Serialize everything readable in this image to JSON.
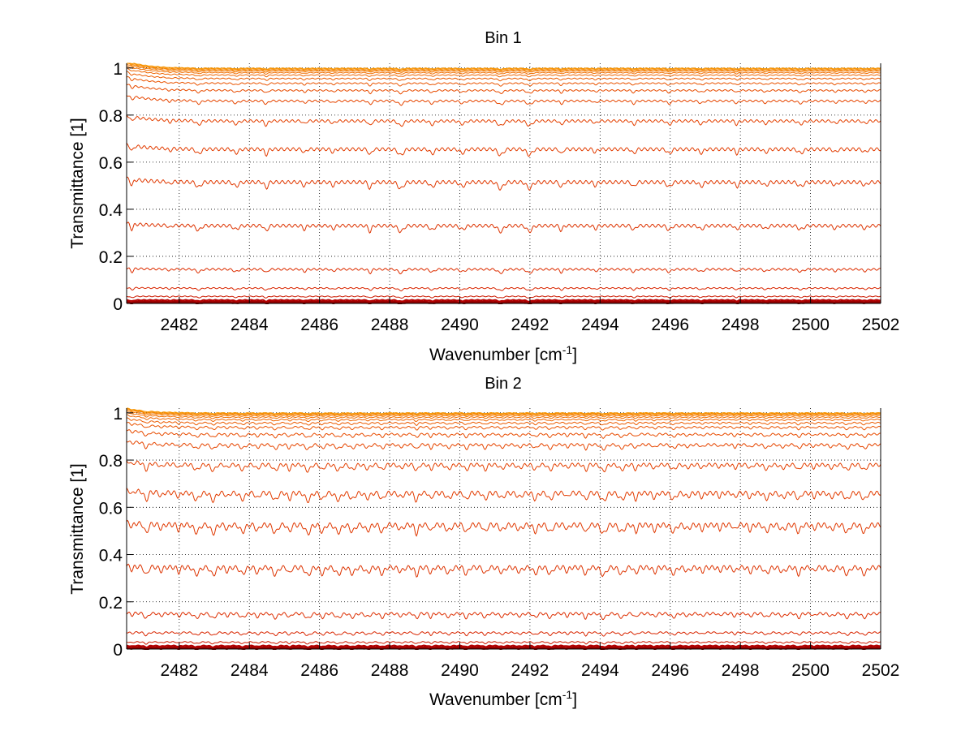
{
  "figure": {
    "background": "#ffffff",
    "axis_color": "#000000",
    "grid_color": "#000000"
  },
  "chart_data": [
    {
      "type": "line",
      "title": "Bin 1",
      "xlabel": "Wavenumber [cm",
      "xlabel_sup": "-1",
      "xlabel_tail": "]",
      "ylabel": "Transmittance [1]",
      "xlim": [
        2480.5,
        2502
      ],
      "ylim": [
        0,
        1.02
      ],
      "xticks": [
        2482,
        2484,
        2486,
        2488,
        2490,
        2492,
        2494,
        2496,
        2498,
        2500,
        2502
      ],
      "xtick_labels": [
        "2482",
        "2484",
        "2486",
        "2488",
        "2490",
        "2492",
        "2494",
        "2496",
        "2498",
        "2500",
        "2502"
      ],
      "yticks": [
        0,
        0.2,
        0.4,
        0.6,
        0.8,
        1
      ],
      "ytick_labels": [
        "0",
        "0.2",
        "0.4",
        "0.6",
        "0.8",
        "1"
      ],
      "grid": true,
      "grid_style": "dotted",
      "line_spacing": 0.95,
      "dip_scale": 0.05,
      "start_bump": 0.03,
      "series": [
        {
          "base": 0.003,
          "color": "#8b0000"
        },
        {
          "base": 0.008,
          "color": "#9c0000"
        },
        {
          "base": 0.014,
          "color": "#b40000"
        },
        {
          "base": 0.03,
          "color": "#cc1a00"
        },
        {
          "base": 0.065,
          "color": "#d92600"
        },
        {
          "base": 0.145,
          "color": "#dd2e00"
        },
        {
          "base": 0.33,
          "color": "#dd3300"
        },
        {
          "base": 0.515,
          "color": "#e03800"
        },
        {
          "base": 0.655,
          "color": "#e23c00"
        },
        {
          "base": 0.775,
          "color": "#e44000"
        },
        {
          "base": 0.86,
          "color": "#e64600"
        },
        {
          "base": 0.905,
          "color": "#e84c00"
        },
        {
          "base": 0.935,
          "color": "#ea5400"
        },
        {
          "base": 0.955,
          "color": "#ec5c00"
        },
        {
          "base": 0.97,
          "color": "#ee6500"
        },
        {
          "base": 0.98,
          "color": "#f06e00"
        },
        {
          "base": 0.987,
          "color": "#f27800"
        },
        {
          "base": 0.992,
          "color": "#f48200"
        },
        {
          "base": 0.996,
          "color": "#f68c00"
        },
        {
          "base": 0.999,
          "color": "#f89600"
        }
      ]
    },
    {
      "type": "line",
      "title": "Bin 2",
      "xlabel": "Wavenumber [cm",
      "xlabel_sup": "-1",
      "xlabel_tail": "]",
      "ylabel": "Transmittance [1]",
      "xlim": [
        2480.5,
        2502
      ],
      "ylim": [
        0,
        1.02
      ],
      "xticks": [
        2482,
        2484,
        2486,
        2488,
        2490,
        2492,
        2494,
        2496,
        2498,
        2500,
        2502
      ],
      "xtick_labels": [
        "2482",
        "2484",
        "2486",
        "2488",
        "2490",
        "2492",
        "2494",
        "2496",
        "2498",
        "2500",
        "2502"
      ],
      "yticks": [
        0,
        0.2,
        0.4,
        0.6,
        0.8,
        1
      ],
      "ytick_labels": [
        "0",
        "0.2",
        "0.4",
        "0.6",
        "0.8",
        "1"
      ],
      "grid": true,
      "grid_style": "dotted",
      "line_spacing": 0.47,
      "dip_scale": 0.07,
      "start_bump": 0.02,
      "series": [
        {
          "base": 0.003,
          "color": "#8b0000"
        },
        {
          "base": 0.008,
          "color": "#9c0000"
        },
        {
          "base": 0.014,
          "color": "#b40000"
        },
        {
          "base": 0.03,
          "color": "#cc1a00"
        },
        {
          "base": 0.07,
          "color": "#d92600"
        },
        {
          "base": 0.15,
          "color": "#dd2e00"
        },
        {
          "base": 0.345,
          "color": "#dd3300"
        },
        {
          "base": 0.525,
          "color": "#e03800"
        },
        {
          "base": 0.66,
          "color": "#e23c00"
        },
        {
          "base": 0.78,
          "color": "#e44000"
        },
        {
          "base": 0.865,
          "color": "#e64600"
        },
        {
          "base": 0.91,
          "color": "#e84c00"
        },
        {
          "base": 0.94,
          "color": "#ea5400"
        },
        {
          "base": 0.958,
          "color": "#ec5c00"
        },
        {
          "base": 0.972,
          "color": "#ee6500"
        },
        {
          "base": 0.982,
          "color": "#f06e00"
        },
        {
          "base": 0.989,
          "color": "#f27800"
        },
        {
          "base": 0.994,
          "color": "#f48200"
        },
        {
          "base": 0.997,
          "color": "#f68c00"
        },
        {
          "base": 1.0,
          "color": "#f89600"
        }
      ]
    }
  ]
}
